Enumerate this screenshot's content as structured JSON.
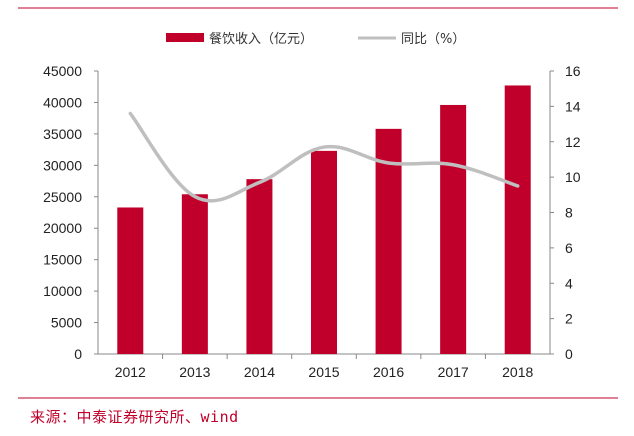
{
  "chart_data": {
    "type": "bar",
    "categories": [
      "2012",
      "2013",
      "2014",
      "2015",
      "2016",
      "2017",
      "2018"
    ],
    "series": [
      {
        "name": "餐饮收入（亿元）",
        "type": "bar",
        "axis": "left",
        "values": [
          23300,
          25400,
          27800,
          32300,
          35800,
          39600,
          42700
        ]
      },
      {
        "name": "同比（%）",
        "type": "line",
        "axis": "right",
        "values": [
          13.6,
          8.9,
          9.7,
          11.7,
          10.8,
          10.7,
          9.5
        ]
      }
    ],
    "ylim_left": [
      0,
      45000
    ],
    "ylim_right": [
      0,
      16
    ],
    "left_ticks": [
      0,
      5000,
      10000,
      15000,
      20000,
      25000,
      30000,
      35000,
      40000,
      45000
    ],
    "right_ticks": [
      0,
      2,
      4,
      6,
      8,
      10,
      12,
      14,
      16
    ],
    "grid": false,
    "legend_position": "top-center",
    "colors": {
      "bar": "#c0002a",
      "line": "#bfbfbf"
    }
  },
  "source_text": "来源：中泰证券研究所、wind"
}
